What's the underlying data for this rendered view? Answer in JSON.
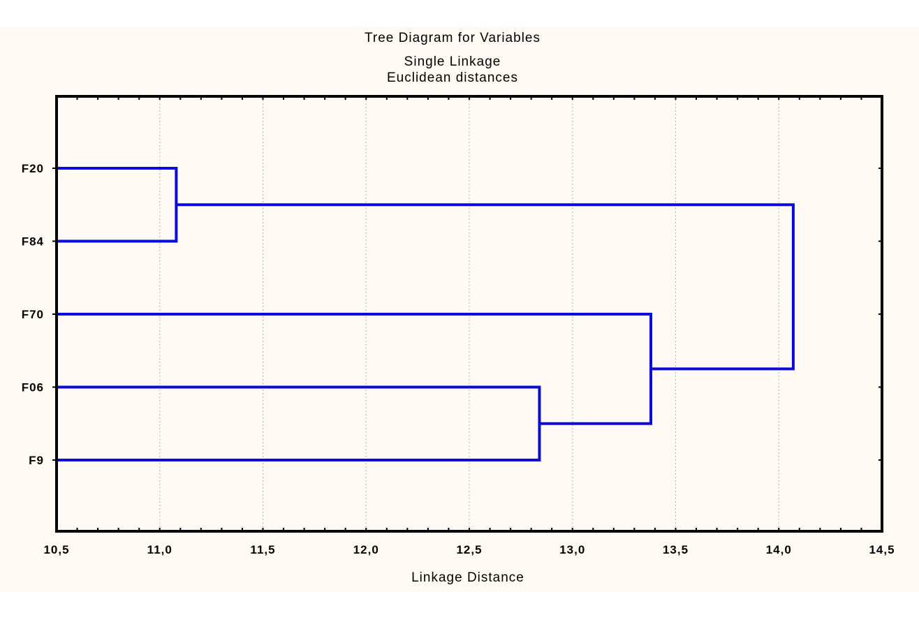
{
  "chart_data": {
    "type": "dendrogram",
    "title": "Tree Diagram for Variables",
    "subtitle1": "Single Linkage",
    "subtitle2": "Euclidean distances",
    "xlabel": "Linkage Distance",
    "xlim": [
      10.5,
      14.5
    ],
    "xticks": [
      10.5,
      11.0,
      11.5,
      12.0,
      12.5,
      13.0,
      13.5,
      14.0,
      14.5
    ],
    "xtick_labels": [
      "10,5",
      "11,0",
      "11,5",
      "12,0",
      "12,5",
      "13,0",
      "13,5",
      "14,0",
      "14,5"
    ],
    "leaves": [
      "F20",
      "F84",
      "F70",
      "F06",
      "F9"
    ],
    "merges": [
      {
        "a": "leaf:F20",
        "b": "leaf:F84",
        "distance": 11.08
      },
      {
        "a": "leaf:F06",
        "b": "leaf:F9",
        "distance": 12.84
      },
      {
        "a": "leaf:F70",
        "b": "node:1",
        "distance": 13.38
      },
      {
        "a": "node:0",
        "b": "node:2",
        "distance": 14.07
      }
    ],
    "grid": true,
    "line_color": "#0a0adc",
    "grid_color": "#b4b4b4"
  }
}
